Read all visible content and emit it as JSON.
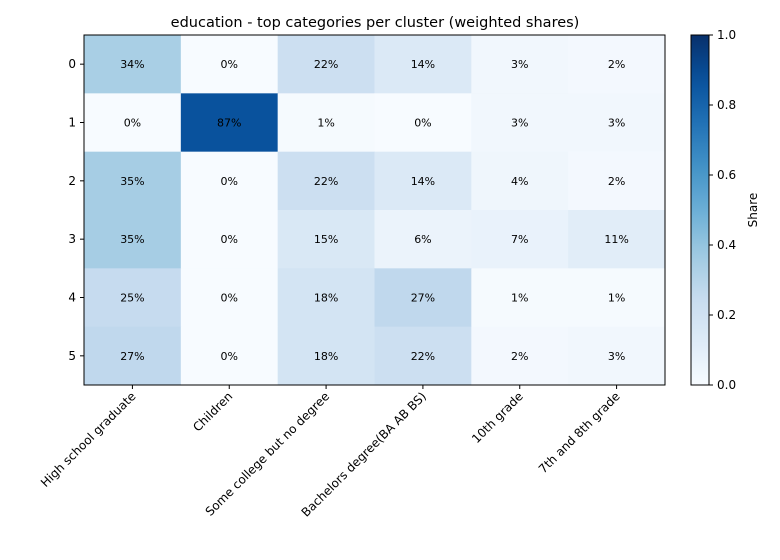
{
  "chart_data": {
    "type": "heatmap",
    "title": "education - top categories per cluster (weighted shares)",
    "x_categories": [
      "High school graduate",
      "Children",
      "Some college but no degree",
      "Bachelors degree(BA AB BS)",
      "10th grade",
      "7th and 8th grade"
    ],
    "y_categories": [
      "0",
      "1",
      "2",
      "3",
      "4",
      "5"
    ],
    "values": [
      [
        0.34,
        0.0,
        0.22,
        0.14,
        0.03,
        0.02
      ],
      [
        0.0,
        0.87,
        0.01,
        0.0,
        0.03,
        0.03
      ],
      [
        0.35,
        0.0,
        0.22,
        0.14,
        0.04,
        0.02
      ],
      [
        0.35,
        0.0,
        0.15,
        0.06,
        0.07,
        0.11
      ],
      [
        0.25,
        0.0,
        0.18,
        0.27,
        0.01,
        0.01
      ],
      [
        0.27,
        0.0,
        0.18,
        0.22,
        0.02,
        0.03
      ]
    ],
    "cell_labels": [
      [
        "34%",
        "0%",
        "22%",
        "14%",
        "3%",
        "2%"
      ],
      [
        "0%",
        "87%",
        "1%",
        "0%",
        "3%",
        "3%"
      ],
      [
        "35%",
        "0%",
        "22%",
        "14%",
        "4%",
        "2%"
      ],
      [
        "35%",
        "0%",
        "15%",
        "6%",
        "7%",
        "11%"
      ],
      [
        "25%",
        "0%",
        "18%",
        "27%",
        "1%",
        "1%"
      ],
      [
        "27%",
        "0%",
        "18%",
        "22%",
        "2%",
        "3%"
      ]
    ],
    "colormap": "Blues",
    "vmin": 0,
    "vmax": 1,
    "colorbar": {
      "label": "Share",
      "ticks": [
        0.0,
        0.2,
        0.4,
        0.6,
        0.8,
        1.0
      ],
      "tick_labels": [
        "0.0",
        "0.2",
        "0.4",
        "0.6",
        "0.8",
        "1.0"
      ]
    },
    "grid": false
  }
}
